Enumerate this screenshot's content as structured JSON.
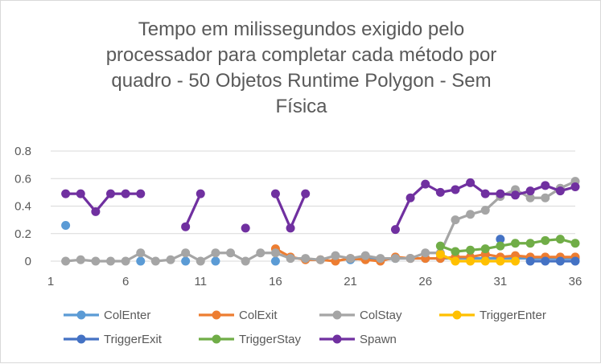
{
  "chart_data": {
    "type": "line",
    "title_lines": [
      "Tempo em milissegundos exigido pelo",
      "processador para completar cada método por",
      "quadro - 50 Objetos Runtime Polygon - Sem",
      "Física"
    ],
    "xlabel": "",
    "ylabel": "",
    "xlim": [
      1,
      36
    ],
    "ylim": [
      0,
      0.8
    ],
    "x_ticks": [
      1,
      6,
      11,
      16,
      21,
      26,
      31,
      36
    ],
    "y_ticks": [
      0,
      0.2,
      0.4,
      0.6,
      0.8
    ],
    "y_tick_labels": [
      "0",
      "0.2",
      "0.4",
      "0.6",
      "0.8"
    ],
    "grid": "horizontal",
    "legend_position": "bottom",
    "x": [
      1,
      2,
      3,
      4,
      5,
      6,
      7,
      8,
      9,
      10,
      11,
      12,
      13,
      14,
      15,
      16,
      17,
      18,
      19,
      20,
      21,
      22,
      23,
      24,
      25,
      26,
      27,
      28,
      29,
      30,
      31,
      32,
      33,
      34,
      35,
      36
    ],
    "series": [
      {
        "name": "ColEnter",
        "color": "#5b9bd5",
        "values": [
          null,
          0.26,
          null,
          null,
          null,
          null,
          0,
          null,
          null,
          0,
          null,
          0,
          null,
          null,
          null,
          0,
          null,
          null,
          null,
          null,
          0.01,
          0.02,
          0.01,
          0.02,
          0.02,
          0.02,
          0.02,
          0.02,
          0.02,
          0.02,
          0.02,
          0.02,
          0.02,
          0.02,
          0.02,
          0.02
        ]
      },
      {
        "name": "ColExit",
        "color": "#ed7d31",
        "values": [
          null,
          null,
          null,
          null,
          null,
          null,
          null,
          null,
          null,
          null,
          null,
          null,
          null,
          null,
          null,
          0.09,
          0.03,
          0.01,
          0.01,
          0,
          0.02,
          0.01,
          0,
          0.03,
          0.02,
          0.02,
          0.02,
          0.03,
          0.03,
          0.05,
          0.03,
          0.04,
          0.03,
          0.03,
          0.03,
          0.03
        ]
      },
      {
        "name": "ColStay",
        "color": "#a5a5a5",
        "values": [
          null,
          0,
          0.01,
          0,
          0,
          0,
          0.06,
          0,
          0.01,
          0.06,
          0,
          0.06,
          0.06,
          0,
          0.06,
          0.06,
          0.02,
          0.02,
          0.01,
          0.04,
          0.02,
          0.04,
          0.02,
          0.02,
          0.02,
          0.06,
          0.06,
          0.3,
          0.34,
          0.37,
          0.47,
          0.52,
          0.46,
          0.46,
          0.53,
          0.58
        ]
      },
      {
        "name": "TriggerEnter",
        "color": "#ffc000",
        "values": [
          null,
          null,
          null,
          null,
          null,
          null,
          null,
          null,
          null,
          null,
          null,
          null,
          null,
          null,
          null,
          null,
          null,
          null,
          null,
          null,
          null,
          null,
          null,
          null,
          null,
          null,
          0.05,
          0,
          0,
          0,
          0,
          0,
          null,
          null,
          null,
          null
        ]
      },
      {
        "name": "TriggerExit",
        "color": "#4472c4",
        "values": [
          null,
          null,
          null,
          null,
          null,
          null,
          null,
          null,
          null,
          null,
          null,
          null,
          null,
          null,
          null,
          null,
          null,
          null,
          null,
          null,
          null,
          null,
          null,
          null,
          null,
          null,
          null,
          null,
          null,
          null,
          0.16,
          null,
          0,
          0,
          0,
          0
        ]
      },
      {
        "name": "TriggerStay",
        "color": "#70ad47",
        "values": [
          null,
          null,
          null,
          null,
          null,
          null,
          null,
          null,
          null,
          null,
          null,
          null,
          null,
          null,
          null,
          null,
          null,
          null,
          null,
          null,
          null,
          null,
          null,
          null,
          null,
          null,
          0.11,
          0.07,
          0.08,
          0.09,
          0.11,
          0.13,
          0.13,
          0.15,
          0.16,
          0.13
        ]
      },
      {
        "name": "Spawn",
        "color": "#7030a0",
        "values": [
          null,
          0.49,
          0.49,
          0.36,
          0.49,
          0.49,
          0.49,
          null,
          null,
          0.25,
          0.49,
          null,
          null,
          0.24,
          null,
          0.49,
          0.24,
          0.49,
          null,
          null,
          null,
          null,
          null,
          0.23,
          0.46,
          0.56,
          0.5,
          0.52,
          0.57,
          0.49,
          0.49,
          0.48,
          0.51,
          0.55,
          0.51,
          0.54
        ]
      }
    ]
  }
}
